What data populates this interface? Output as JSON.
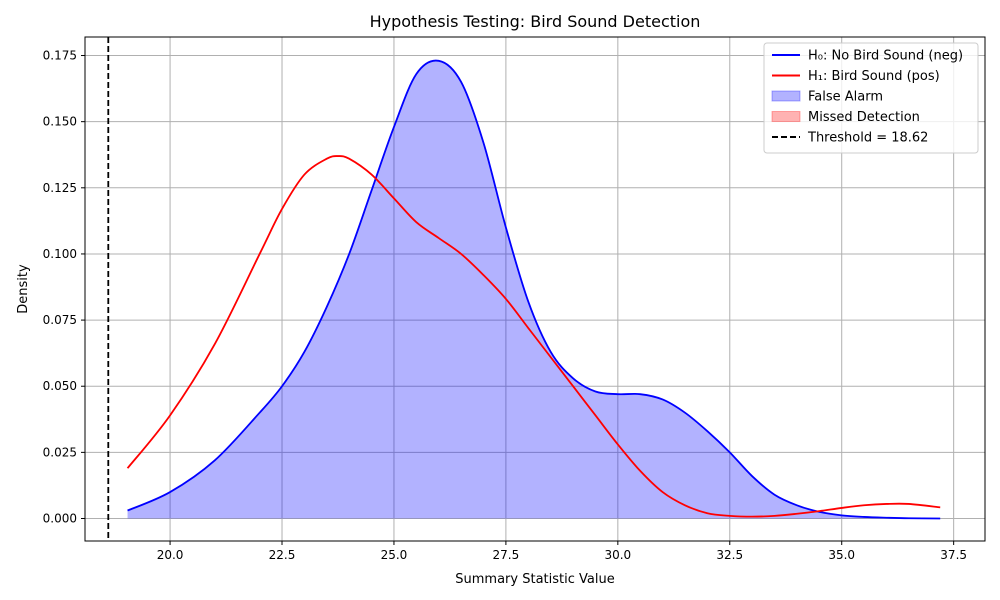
{
  "chart_data": {
    "type": "line",
    "title": "Hypothesis Testing: Bird Sound Detection",
    "xlabel": "Summary Statistic Value",
    "ylabel": "Density",
    "xlim": [
      18.1,
      38.2
    ],
    "ylim": [
      -0.0085,
      0.182
    ],
    "xticks": [
      20.0,
      22.5,
      25.0,
      27.5,
      30.0,
      32.5,
      35.0,
      37.5
    ],
    "xtick_labels": [
      "20.0",
      "22.5",
      "25.0",
      "27.5",
      "30.0",
      "32.5",
      "35.0",
      "37.5"
    ],
    "yticks": [
      0.0,
      0.025,
      0.05,
      0.075,
      0.1,
      0.125,
      0.15,
      0.175
    ],
    "ytick_labels": [
      "0.000",
      "0.025",
      "0.050",
      "0.075",
      "0.100",
      "0.125",
      "0.150",
      "0.175"
    ],
    "grid": true,
    "legend_position": "top-right",
    "threshold": 18.62,
    "series": [
      {
        "name": "H₀: No Bird Sound (neg)",
        "color": "#0000ff",
        "x": [
          19.05,
          20.0,
          21.0,
          22.0,
          22.5,
          23.0,
          23.5,
          24.0,
          24.5,
          25.0,
          25.5,
          26.0,
          26.5,
          27.0,
          27.5,
          28.0,
          28.5,
          29.0,
          29.5,
          30.0,
          30.5,
          31.0,
          31.5,
          32.0,
          32.5,
          33.0,
          33.5,
          34.0,
          34.5,
          35.0,
          35.5,
          36.0,
          36.5,
          37.2
        ],
        "y": [
          0.003,
          0.01,
          0.022,
          0.04,
          0.05,
          0.063,
          0.08,
          0.1,
          0.124,
          0.148,
          0.168,
          0.173,
          0.165,
          0.142,
          0.11,
          0.082,
          0.063,
          0.053,
          0.048,
          0.047,
          0.047,
          0.045,
          0.04,
          0.033,
          0.025,
          0.016,
          0.009,
          0.005,
          0.0025,
          0.0012,
          0.0006,
          0.0003,
          0.0001,
          0.0
        ]
      },
      {
        "name": "H₁: Bird Sound (pos)",
        "color": "#ff0000",
        "x": [
          19.05,
          20.0,
          21.0,
          22.0,
          22.5,
          23.0,
          23.5,
          23.75,
          24.0,
          24.5,
          25.0,
          25.5,
          26.0,
          26.5,
          27.0,
          27.5,
          28.0,
          28.5,
          29.0,
          29.5,
          30.0,
          30.5,
          31.0,
          31.5,
          32.0,
          32.5,
          33.0,
          33.5,
          34.0,
          34.5,
          35.0,
          35.5,
          36.0,
          36.5,
          37.2
        ],
        "y": [
          0.019,
          0.039,
          0.066,
          0.1,
          0.117,
          0.13,
          0.136,
          0.137,
          0.136,
          0.13,
          0.121,
          0.112,
          0.106,
          0.1,
          0.092,
          0.083,
          0.072,
          0.061,
          0.05,
          0.039,
          0.028,
          0.018,
          0.01,
          0.005,
          0.002,
          0.001,
          0.0007,
          0.001,
          0.0018,
          0.0028,
          0.004,
          0.005,
          0.0055,
          0.0055,
          0.0042
        ]
      }
    ],
    "fills": [
      {
        "name": "False Alarm",
        "color": "#0000ff",
        "opacity": 0.3,
        "of_series": 0
      },
      {
        "name": "Missed Detection",
        "color": "#ff0000",
        "opacity": 0.3,
        "of_series": 1
      }
    ],
    "threshold_label": "Threshold = 18.62",
    "threshold_color": "#000000"
  }
}
